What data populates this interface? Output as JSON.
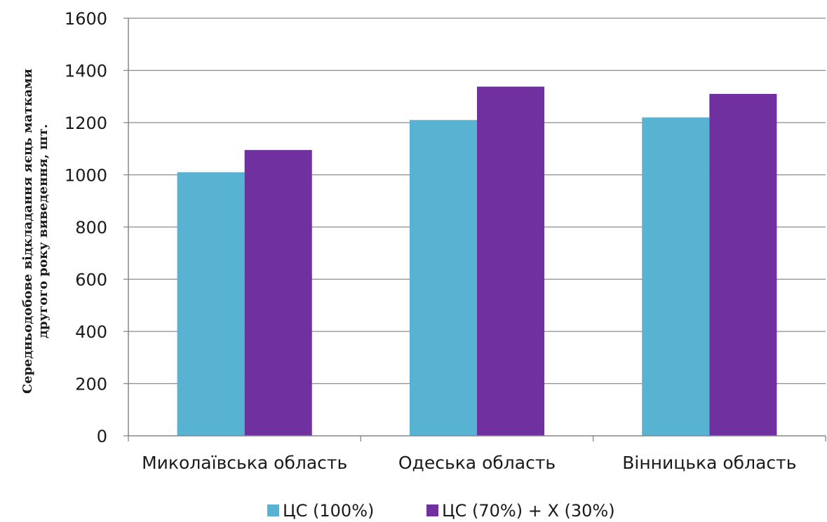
{
  "chart_data": {
    "type": "bar",
    "categories": [
      "Миколаївська область",
      "Одеська область",
      "Вінницька область"
    ],
    "series": [
      {
        "name": "ЦС (100%)",
        "values": [
          1010,
          1210,
          1220
        ]
      },
      {
        "name": "ЦС (70%) + Х (30%)",
        "values": [
          1095,
          1338,
          1310
        ]
      }
    ],
    "ylabel_lines": [
      "Середньодобове відкладання яєць матками",
      "другого року виведення, шт."
    ],
    "xlabel": "",
    "ylim": [
      0,
      1600
    ],
    "yticks": [
      0,
      200,
      400,
      600,
      800,
      1000,
      1200,
      1400,
      1600
    ],
    "grid": true,
    "legend_position": "bottom",
    "colors": [
      "#58b3d3",
      "#7030a0"
    ]
  }
}
